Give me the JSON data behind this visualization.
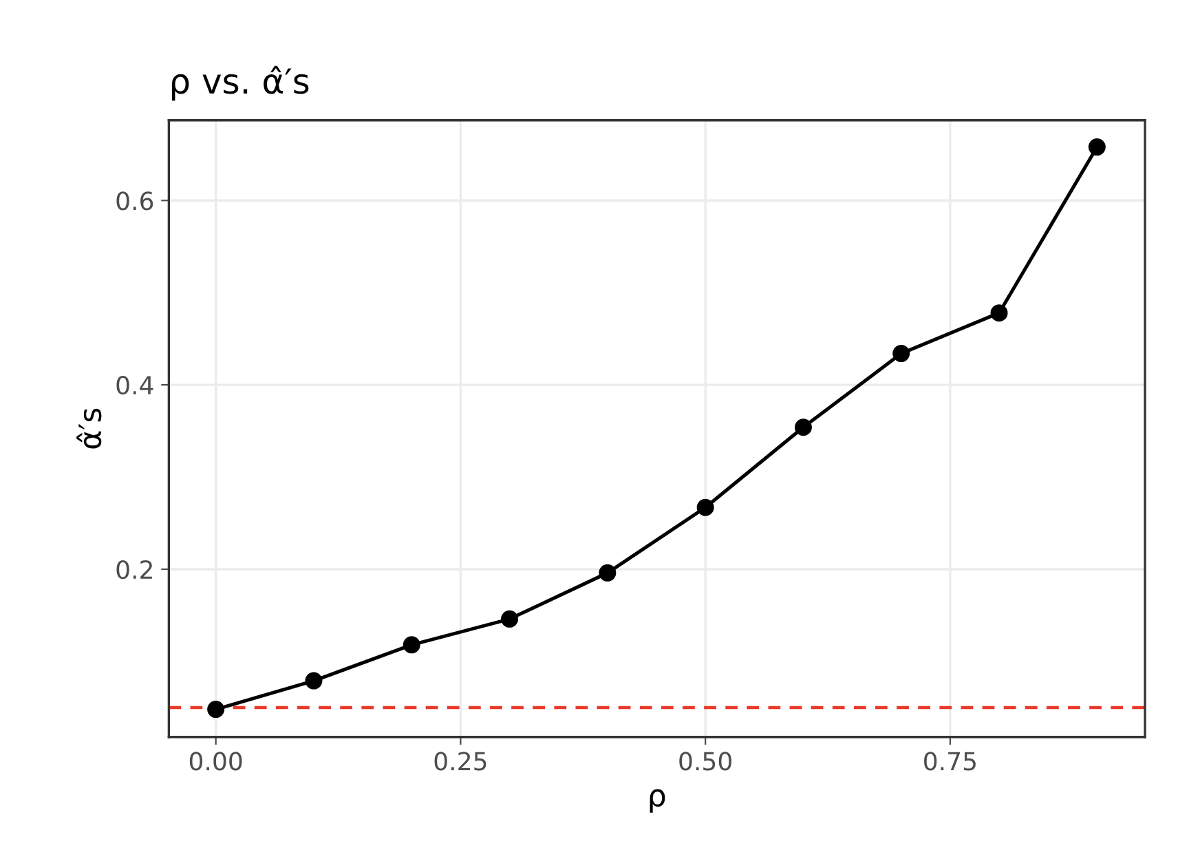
{
  "chart_data": {
    "type": "line",
    "title": "ρ vs. α̂′s",
    "xlabel": "ρ",
    "ylabel": "α̂′s",
    "x": [
      0.0,
      0.1,
      0.2,
      0.3,
      0.4,
      0.5,
      0.6,
      0.7,
      0.8,
      0.9
    ],
    "series": [
      {
        "color": "#000000",
        "values": [
          0.048,
          0.079,
          0.118,
          0.146,
          0.196,
          0.267,
          0.354,
          0.434,
          0.478,
          0.658
        ]
      }
    ],
    "marker": "circle",
    "line_style": "solid",
    "ref_lines": [
      {
        "axis": "y",
        "value": 0.05,
        "color": "#e8392b",
        "line_style": "dashed"
      }
    ],
    "xlim": [
      -0.048,
      0.949
    ],
    "ylim": [
      0.018,
      0.687
    ],
    "xticks": [
      {
        "value": 0,
        "label": "0.00"
      },
      0.25,
      {
        "value": 0.5,
        "label": "0.50"
      },
      0.75
    ],
    "yticks": [
      0.2,
      0.4,
      0.6
    ],
    "grid": true,
    "legend": false
  }
}
